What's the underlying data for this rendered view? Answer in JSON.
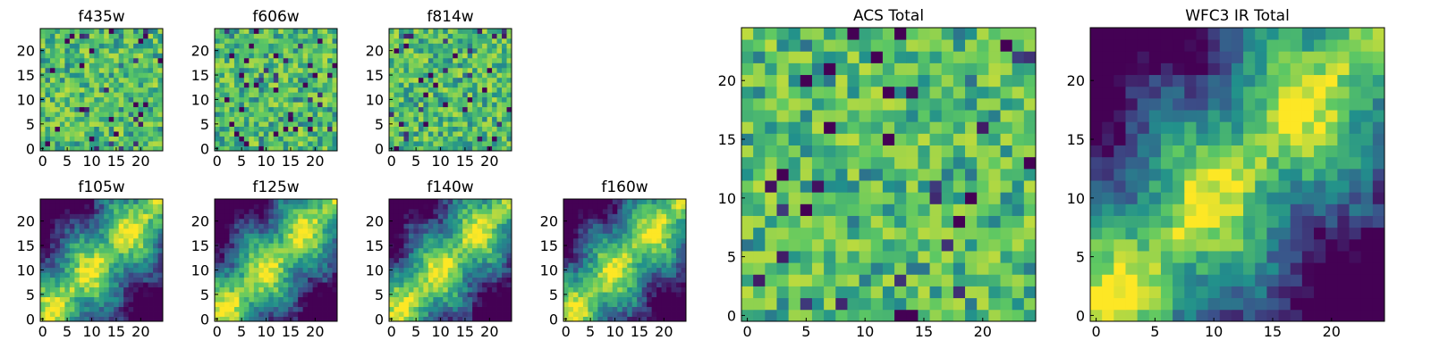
{
  "figure": {
    "background": "#ffffff",
    "colormap": "viridis",
    "colormap_stops": [
      "#440154",
      "#3b528b",
      "#21908c",
      "#5dc863",
      "#fde725"
    ]
  },
  "chart_data": [
    {
      "type": "heatmap",
      "title": "f435w",
      "pattern": "noise",
      "seed": 11,
      "grid_size": [
        25,
        25
      ],
      "xlim": [
        -0.5,
        24.5
      ],
      "ylim": [
        -0.5,
        24.5
      ],
      "xticks": [
        0,
        5,
        10,
        15,
        20
      ],
      "yticks": [
        0,
        5,
        10,
        15,
        20
      ]
    },
    {
      "type": "heatmap",
      "title": "f606w",
      "pattern": "noise",
      "seed": 23,
      "grid_size": [
        25,
        25
      ],
      "xlim": [
        -0.5,
        24.5
      ],
      "ylim": [
        -0.5,
        24.5
      ],
      "xticks": [
        0,
        5,
        10,
        15,
        20
      ],
      "yticks": [
        0,
        5,
        10,
        15,
        20
      ]
    },
    {
      "type": "heatmap",
      "title": "f814w",
      "pattern": "noise",
      "seed": 37,
      "grid_size": [
        25,
        25
      ],
      "xlim": [
        -0.5,
        24.5
      ],
      "ylim": [
        -0.5,
        24.5
      ],
      "xticks": [
        0,
        5,
        10,
        15,
        20
      ],
      "yticks": [
        0,
        5,
        10,
        15,
        20
      ]
    },
    {
      "type": "heatmap",
      "title": "f105w",
      "pattern": "diagonal",
      "seed": 41,
      "grid_size": [
        25,
        25
      ],
      "xlim": [
        -0.5,
        24.5
      ],
      "ylim": [
        -0.5,
        24.5
      ],
      "xticks": [
        0,
        5,
        10,
        15,
        20
      ],
      "yticks": [
        0,
        5,
        10,
        15,
        20
      ]
    },
    {
      "type": "heatmap",
      "title": "f125w",
      "pattern": "diagonal",
      "seed": 53,
      "grid_size": [
        25,
        25
      ],
      "xlim": [
        -0.5,
        24.5
      ],
      "ylim": [
        -0.5,
        24.5
      ],
      "xticks": [
        0,
        5,
        10,
        15,
        20
      ],
      "yticks": [
        0,
        5,
        10,
        15,
        20
      ]
    },
    {
      "type": "heatmap",
      "title": "f140w",
      "pattern": "diagonal",
      "seed": 67,
      "grid_size": [
        25,
        25
      ],
      "xlim": [
        -0.5,
        24.5
      ],
      "ylim": [
        -0.5,
        24.5
      ],
      "xticks": [
        0,
        5,
        10,
        15,
        20
      ],
      "yticks": [
        0,
        5,
        10,
        15,
        20
      ]
    },
    {
      "type": "heatmap",
      "title": "f160w",
      "pattern": "diagonal",
      "seed": 79,
      "grid_size": [
        25,
        25
      ],
      "xlim": [
        -0.5,
        24.5
      ],
      "ylim": [
        -0.5,
        24.5
      ],
      "xticks": [
        0,
        5,
        10,
        15,
        20
      ],
      "yticks": [
        0,
        5,
        10,
        15,
        20
      ]
    },
    {
      "type": "heatmap",
      "title": "ACS Total",
      "pattern": "noise",
      "seed": 97,
      "grid_size": [
        25,
        25
      ],
      "xlim": [
        -0.5,
        24.5
      ],
      "ylim": [
        -0.5,
        24.5
      ],
      "xticks": [
        0,
        5,
        10,
        15,
        20
      ],
      "yticks": [
        0,
        5,
        10,
        15,
        20
      ]
    },
    {
      "type": "heatmap",
      "title": "WFC3 IR Total",
      "pattern": "diagonal",
      "seed": 103,
      "grid_size": [
        25,
        25
      ],
      "xlim": [
        -0.5,
        24.5
      ],
      "ylim": [
        -0.5,
        24.5
      ],
      "xticks": [
        0,
        5,
        10,
        15,
        20
      ],
      "yticks": [
        0,
        5,
        10,
        15,
        20
      ]
    }
  ]
}
